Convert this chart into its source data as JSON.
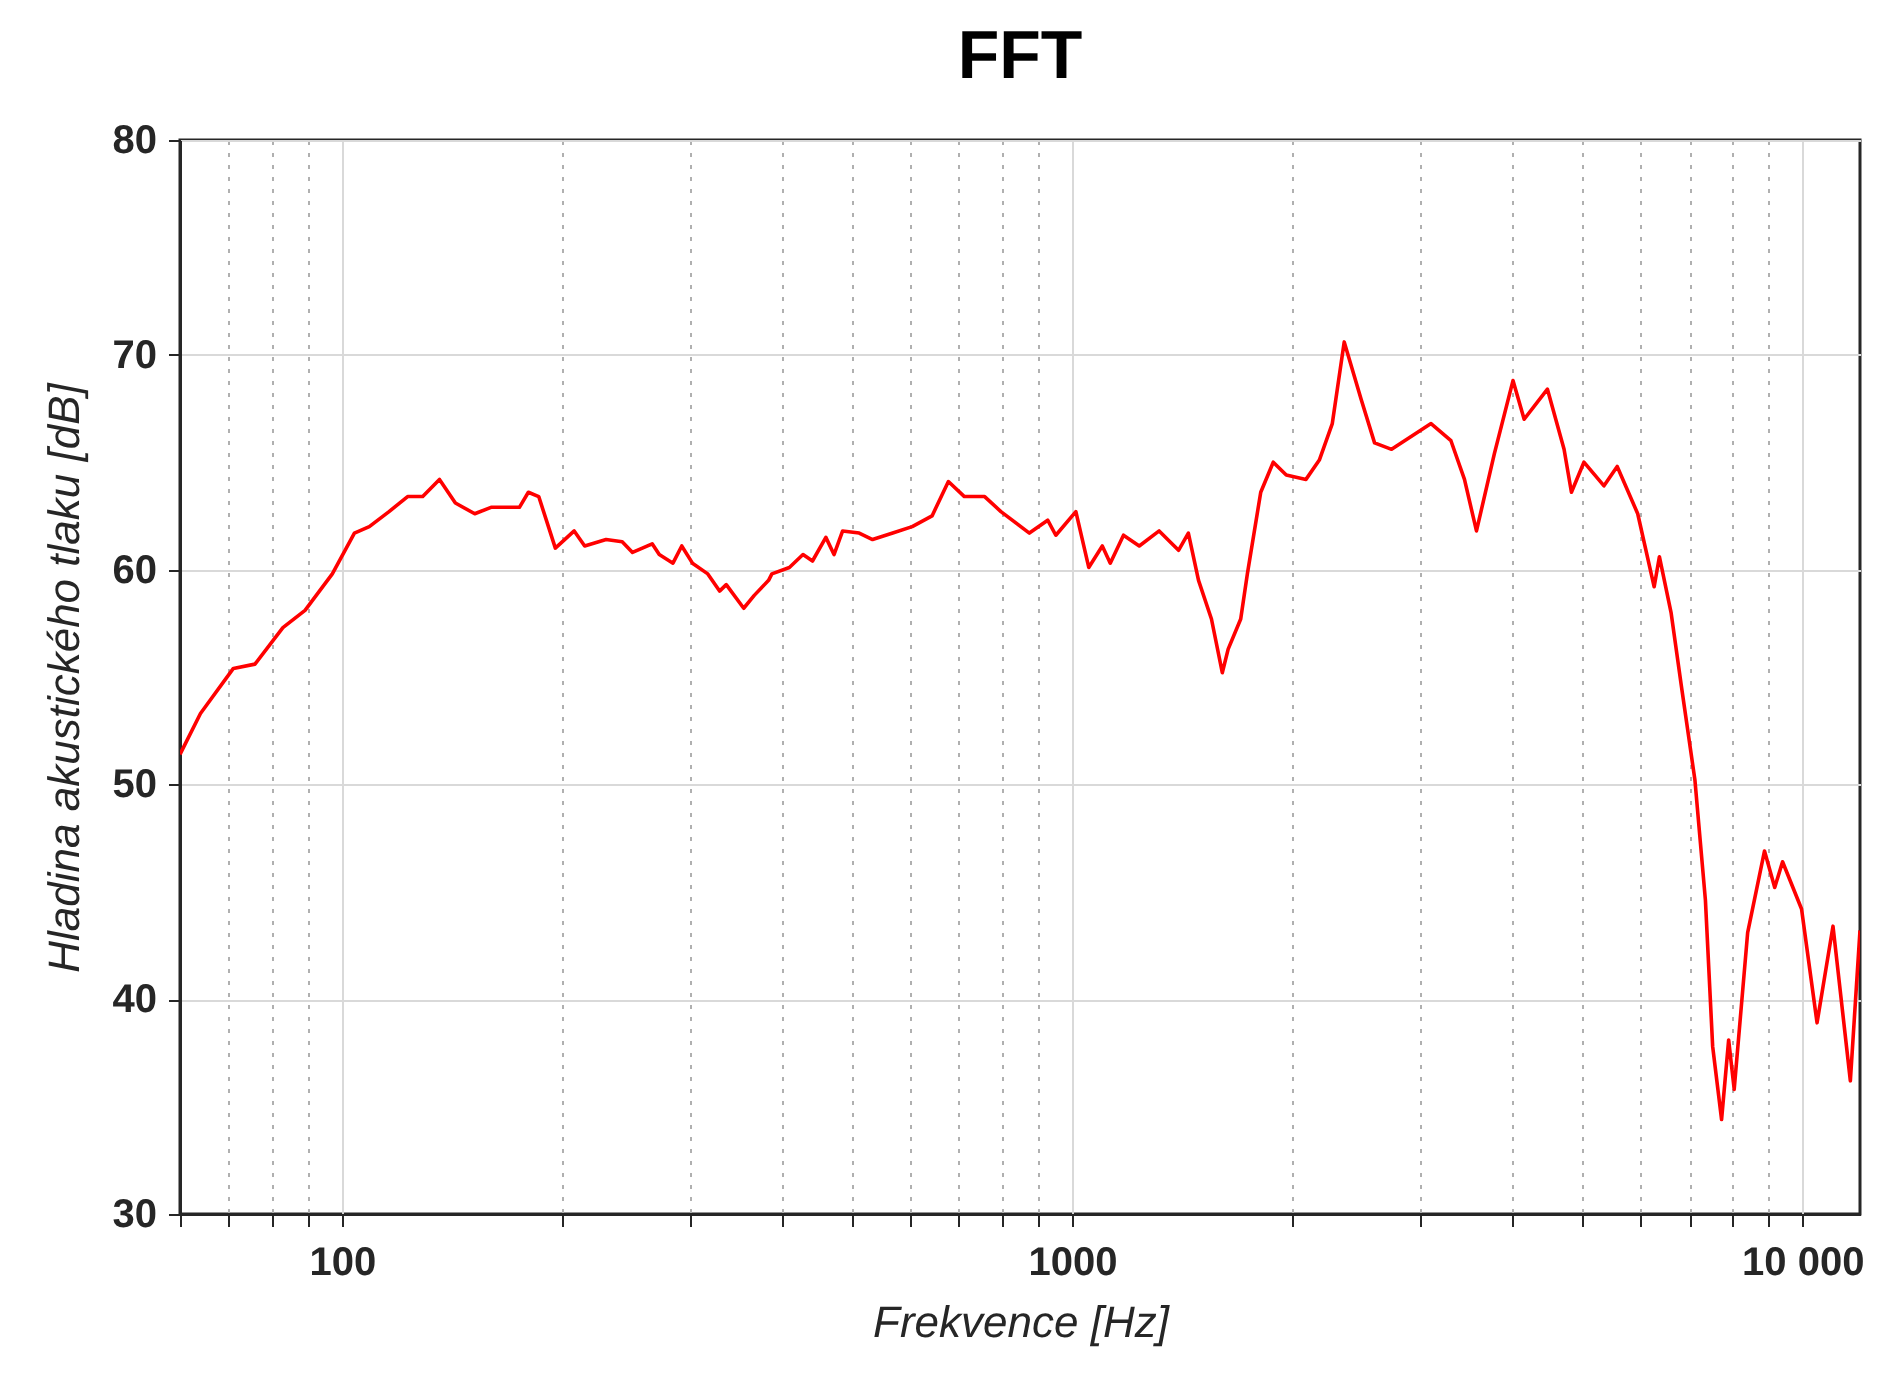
{
  "chart_data": {
    "type": "line",
    "title": "FFT",
    "xlabel": "Frekvence [Hz]",
    "ylabel": "Hladina akustického tlaku [dB]",
    "log": "x",
    "grid": true,
    "xlim": [
      60,
      12000
    ],
    "ylim": [
      30,
      80
    ],
    "yticks": [
      30,
      40,
      50,
      60,
      70,
      80
    ],
    "xticks": [
      {
        "value": 60,
        "label": null
      },
      {
        "value": 70,
        "label": null
      },
      {
        "value": 80,
        "label": null
      },
      {
        "value": 90,
        "label": null
      },
      100,
      {
        "value": 200,
        "label": null
      },
      {
        "value": 300,
        "label": null
      },
      {
        "value": 400,
        "label": null
      },
      {
        "value": 500,
        "label": null
      },
      {
        "value": 600,
        "label": null
      },
      {
        "value": 700,
        "label": null
      },
      {
        "value": 800,
        "label": null
      },
      {
        "value": 900,
        "label": null
      },
      1000,
      {
        "value": 2000,
        "label": null
      },
      {
        "value": 3000,
        "label": null
      },
      {
        "value": 4000,
        "label": null
      },
      {
        "value": 5000,
        "label": null
      },
      {
        "value": 6000,
        "label": null
      },
      {
        "value": 7000,
        "label": null
      },
      {
        "value": 8000,
        "label": null
      },
      {
        "value": 9000,
        "label": null
      },
      {
        "value": 10000,
        "label": "10 000"
      }
    ],
    "series": [
      {
        "color": "#ff0000",
        "x": [
          60,
          64,
          71,
          76,
          83,
          89,
          97,
          104,
          109,
          116,
          123,
          129,
          136,
          143,
          152,
          160,
          175,
          180,
          186,
          196,
          208,
          215,
          230,
          242,
          250,
          266,
          272,
          284,
          292,
          302,
          317,
          329,
          336,
          355,
          367,
          384,
          388,
          410,
          428,
          441,
          460,
          472,
          485,
          511,
          533,
          568,
          604,
          643,
          677,
          712,
          759,
          799,
          874,
          926,
          950,
          1012,
          1054,
          1100,
          1128,
          1176,
          1236,
          1316,
          1399,
          1443,
          1490,
          1552,
          1606,
          1636,
          1702,
          1738,
          1813,
          1886,
          1965,
          2091,
          2181,
          2272,
          2359,
          2490,
          2596,
          2739,
          2945,
          3102,
          3303,
          3447,
          3580,
          3788,
          4017,
          4161,
          4478,
          4719,
          4830,
          5024,
          5352,
          5580,
          5953,
          6270,
          6374,
          6613,
          6830,
          7130,
          7370,
          7540,
          7755,
          7930,
          8070,
          8420,
          8880,
          9170,
          9400,
          9980,
          10480,
          11020,
          11640,
          12000
        ],
        "values": [
          51.4,
          53.3,
          55.4,
          55.6,
          57.3,
          58.1,
          59.8,
          61.7,
          62.0,
          62.7,
          63.4,
          63.4,
          64.2,
          63.1,
          62.6,
          62.9,
          62.9,
          63.6,
          63.4,
          61.0,
          61.8,
          61.1,
          61.4,
          61.3,
          60.8,
          61.2,
          60.7,
          60.3,
          61.1,
          60.3,
          59.8,
          59.0,
          59.3,
          58.2,
          58.8,
          59.5,
          59.8,
          60.1,
          60.7,
          60.4,
          61.5,
          60.7,
          61.8,
          61.7,
          61.4,
          61.7,
          62.0,
          62.5,
          64.1,
          63.4,
          63.4,
          62.7,
          61.7,
          62.3,
          61.6,
          62.7,
          60.1,
          61.1,
          60.3,
          61.6,
          61.1,
          61.8,
          60.9,
          61.7,
          59.5,
          57.7,
          55.2,
          56.3,
          57.7,
          59.8,
          63.6,
          65.0,
          64.4,
          64.2,
          65.1,
          66.8,
          70.6,
          67.9,
          65.9,
          65.6,
          66.3,
          66.8,
          66.0,
          64.2,
          61.8,
          65.4,
          68.8,
          67.0,
          68.4,
          65.6,
          63.6,
          65.0,
          63.9,
          64.8,
          62.6,
          59.2,
          60.6,
          58.0,
          54.6,
          50.2,
          44.6,
          37.8,
          34.4,
          38.1,
          35.8,
          43.1,
          46.9,
          45.2,
          46.4,
          44.2,
          38.9,
          43.4,
          36.2,
          43.2
        ]
      }
    ]
  }
}
